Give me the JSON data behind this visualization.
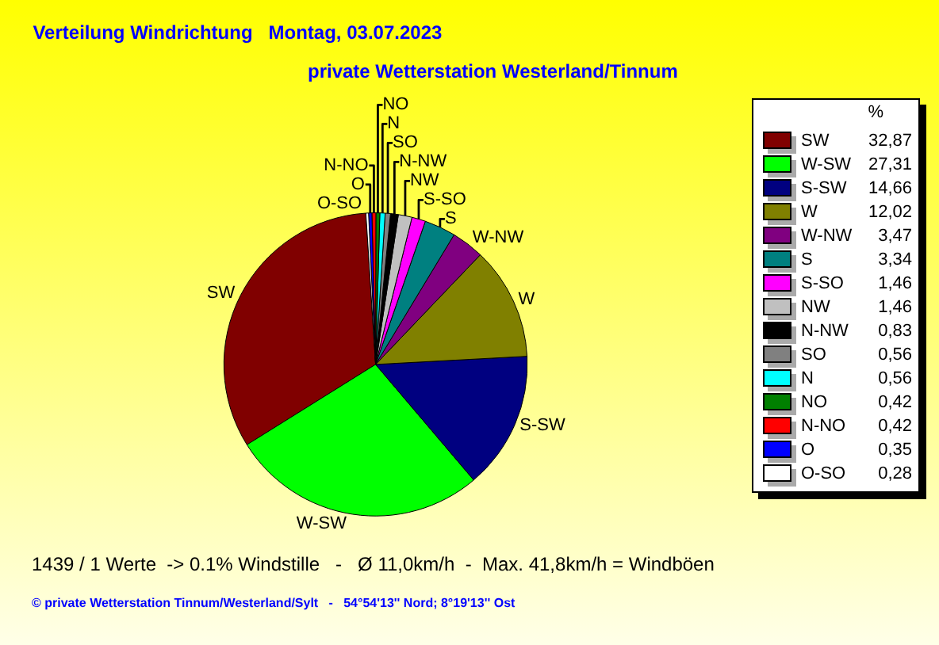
{
  "chart_data": {
    "type": "pie",
    "title": "Verteilung Windrichtung   Montag, 03.07.2023",
    "subtitle": "private Wetterstation Westerland/Tinnum",
    "legend_title": "%",
    "categories": [
      "SW",
      "W-SW",
      "S-SW",
      "W",
      "W-NW",
      "S",
      "S-SO",
      "NW",
      "N-NW",
      "SO",
      "N",
      "NO",
      "N-NO",
      "O",
      "O-SO"
    ],
    "values": [
      32.87,
      27.31,
      14.66,
      12.02,
      3.47,
      3.34,
      1.46,
      1.46,
      0.83,
      0.56,
      0.56,
      0.42,
      0.42,
      0.35,
      0.28
    ],
    "value_labels": [
      "32,87",
      "27,31",
      "14,66",
      "12,02",
      "3,47",
      "3,34",
      "1,46",
      "1,46",
      "0,83",
      "0,56",
      "0,56",
      "0,42",
      "0,42",
      "0,35",
      "0,28"
    ],
    "colors": [
      "#800000",
      "#00ff00",
      "#000080",
      "#808000",
      "#800080",
      "#008080",
      "#ff00ff",
      "#c0c0c0",
      "#000000",
      "#808080",
      "#00ffff",
      "#008000",
      "#ff0000",
      "#0000ff",
      "#ffffff"
    ],
    "legend": "right",
    "annotations": [
      "1439 / 1 Werte  -> 0.1% Windstille   -   Ø 11,0km/h  -  Max. 41,8km/h = Windböen",
      "© private Wetterstation Tinnum/Westerland/Sylt   -   54°54'13'' Nord; 8°19'13'' Ost"
    ]
  }
}
